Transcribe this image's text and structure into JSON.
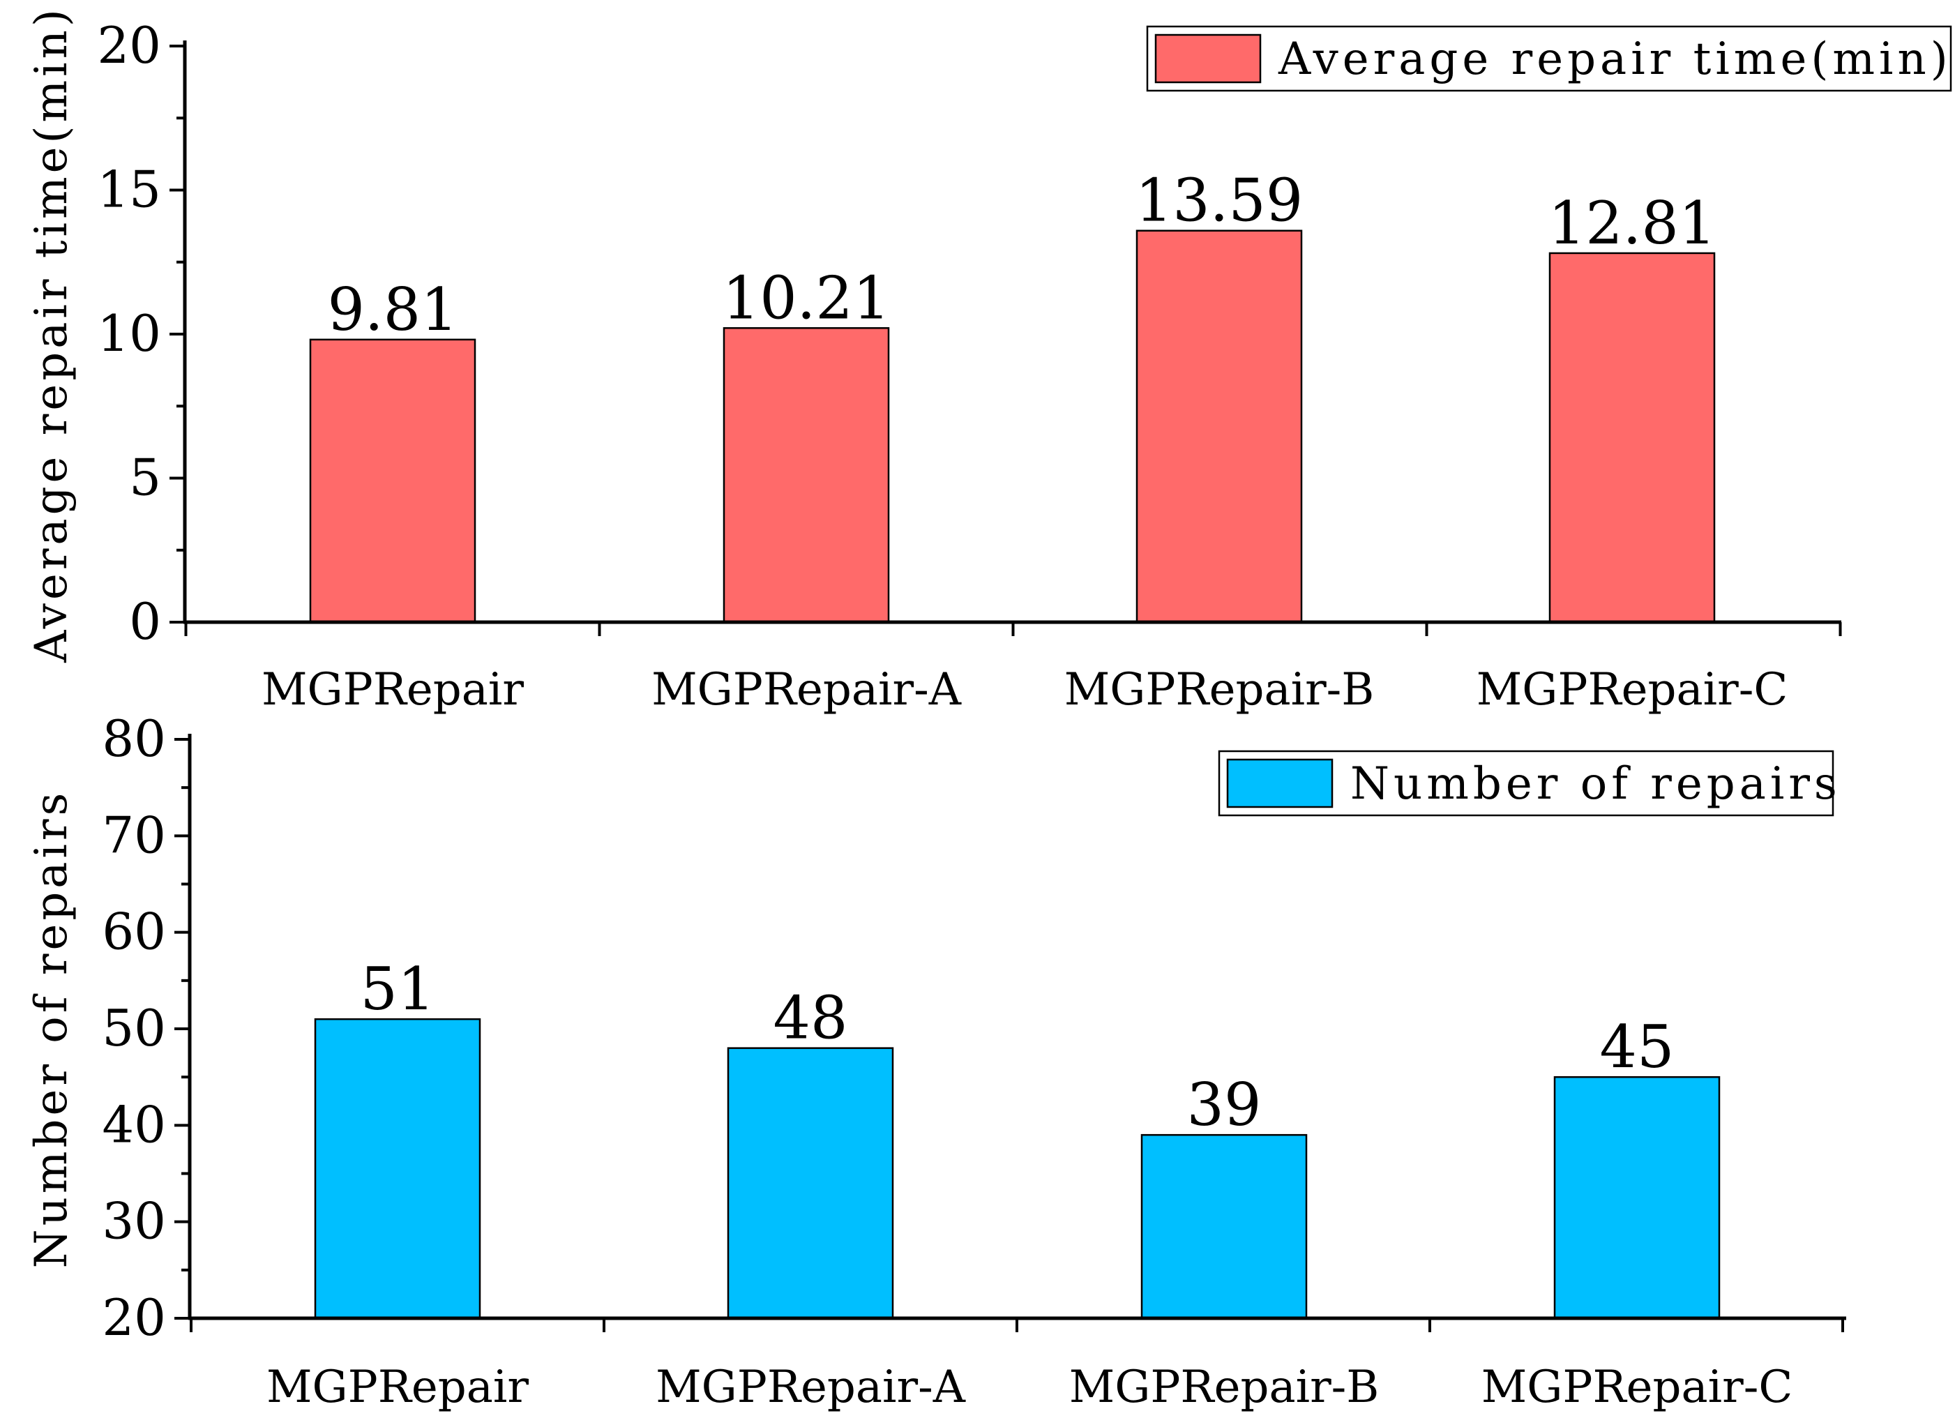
{
  "chart_data": [
    {
      "type": "bar",
      "title": "",
      "xlabel": "",
      "ylabel": "Average repair time(min)",
      "categories": [
        "MGPRepair",
        "MGPRepair-A",
        "MGPRepair-B",
        "MGPRepair-C"
      ],
      "series": [
        {
          "name": "Average repair time(min)",
          "values": [
            9.81,
            10.21,
            13.59,
            12.81
          ]
        }
      ],
      "value_labels": [
        "9.81",
        "10.21",
        "13.59",
        "12.81"
      ],
      "ylim": [
        0,
        20
      ],
      "yticks": [
        0,
        5,
        10,
        15,
        20
      ],
      "color": "#FF6A6A",
      "legend_position": "top-right",
      "grid": false
    },
    {
      "type": "bar",
      "title": "",
      "xlabel": "",
      "ylabel": "Number of repairs",
      "categories": [
        "MGPRepair",
        "MGPRepair-A",
        "MGPRepair-B",
        "MGPRepair-C"
      ],
      "series": [
        {
          "name": "Number of repairs",
          "values": [
            51,
            48,
            39,
            45
          ]
        }
      ],
      "value_labels": [
        "51",
        "48",
        "39",
        "45"
      ],
      "ylim": [
        20,
        80
      ],
      "yticks": [
        20,
        30,
        40,
        50,
        60,
        70,
        80
      ],
      "color": "#00BFFF",
      "legend_position": "top-right",
      "grid": false
    }
  ]
}
